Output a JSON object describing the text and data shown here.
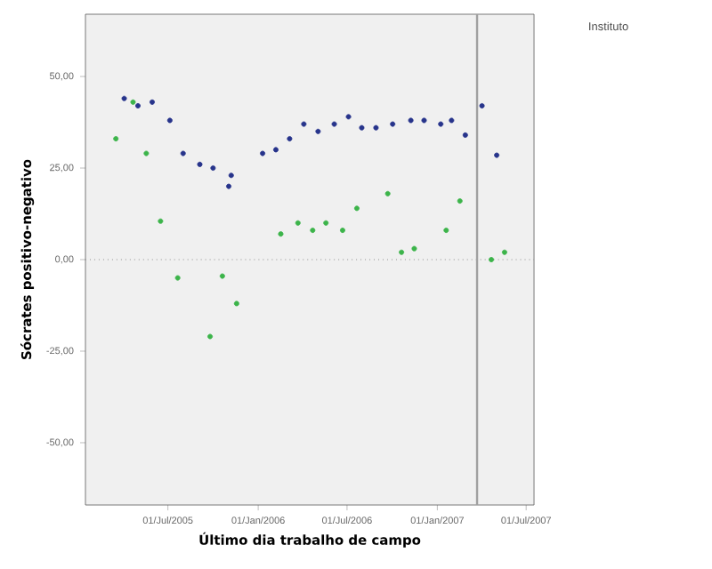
{
  "chart_data": {
    "type": "scatter",
    "xlabel": "Último dia trabalho de campo",
    "ylabel": "Sócrates positivo-negativo",
    "legend_title": "Instituto",
    "grid": false,
    "xlim": [
      "2005-01-14",
      "2007-07-17"
    ],
    "xticks": [
      {
        "value": "2005-07-01",
        "label": "01/Jul/2005"
      },
      {
        "value": "2006-01-01",
        "label": "01/Jan/2006"
      },
      {
        "value": "2006-07-01",
        "label": "01/Jul/2006"
      },
      {
        "value": "2007-01-01",
        "label": "01/Jan/2007"
      },
      {
        "value": "2007-07-01",
        "label": "01/Jul/2007"
      }
    ],
    "ylim": [
      -67,
      67
    ],
    "yticks": [
      {
        "value": -50,
        "label": "-50,00"
      },
      {
        "value": -25,
        "label": "-25,00"
      },
      {
        "value": 0,
        "label": "0,00"
      },
      {
        "value": 25,
        "label": "25,00"
      },
      {
        "value": 50,
        "label": "50,00"
      }
    ],
    "ref_lines": [
      {
        "axis": "y",
        "value": 0,
        "color": "#909090",
        "line_style": "dotted"
      },
      {
        "axis": "x",
        "value": "2007-03-23",
        "color": "#a0a0a0",
        "line_style": "solid"
      }
    ],
    "series": [
      {
        "color": "#27348b",
        "x": [
          "2005-04-03",
          "2005-05-01",
          "2005-05-30",
          "2005-07-05",
          "2005-08-01",
          "2005-09-04",
          "2005-10-01",
          "2005-11-02",
          "2005-11-07",
          "2006-01-10",
          "2006-02-06",
          "2006-03-06",
          "2006-04-04",
          "2006-05-03",
          "2006-06-05",
          "2006-07-04",
          "2006-07-31",
          "2006-08-29",
          "2006-10-02",
          "2006-11-08",
          "2006-12-05",
          "2007-01-08",
          "2007-01-30",
          "2007-02-27",
          "2007-04-02",
          "2007-05-02"
        ],
        "values": [
          44,
          42,
          43,
          38,
          29,
          26,
          25,
          20,
          23,
          29,
          30,
          33,
          37,
          35,
          37,
          39,
          36,
          36,
          37,
          38,
          38,
          37,
          38,
          34,
          42,
          28.5
        ]
      },
      {
        "color": "#3cb44a",
        "x": [
          "2005-03-17",
          "2005-04-21",
          "2005-05-18",
          "2005-06-16",
          "2005-07-21",
          "2005-09-25",
          "2005-10-20",
          "2005-11-18",
          "2006-02-16",
          "2006-03-23",
          "2006-04-22",
          "2006-05-19",
          "2006-06-22",
          "2006-07-21",
          "2006-09-22",
          "2006-10-20",
          "2006-11-15",
          "2007-01-19",
          "2007-02-16",
          "2007-04-21",
          "2007-05-18"
        ],
        "values": [
          33,
          43,
          29,
          10.5,
          -5,
          -21,
          -4.5,
          -12,
          7,
          10,
          8,
          10,
          8,
          14,
          18,
          2,
          3,
          8,
          16,
          0,
          2
        ]
      }
    ]
  }
}
